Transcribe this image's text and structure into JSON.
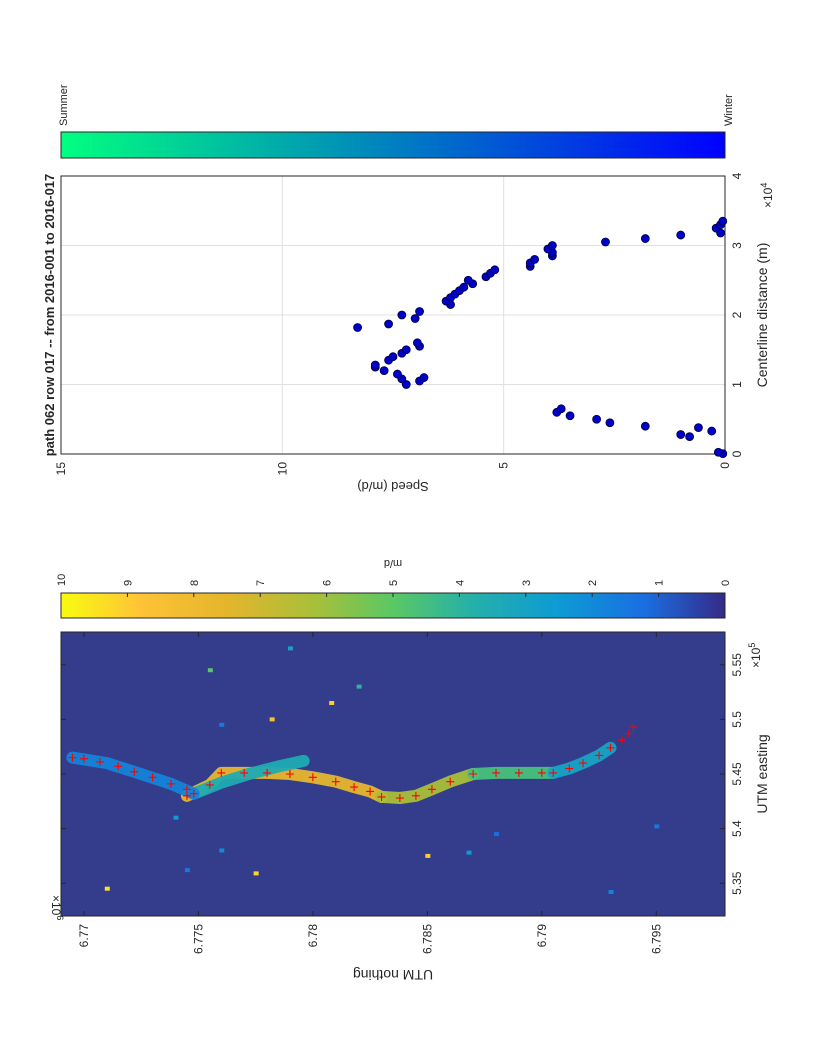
{
  "colors": {
    "marker": "#0000c8",
    "marker_edge": "#00003c",
    "track": "#ff0000",
    "grid": "#e0e0e0",
    "background": "#343c8c"
  },
  "chart_data": [
    {
      "type": "heatmap",
      "title": "",
      "xlabel": "UTM easting",
      "ylabel": "UTM nothing",
      "x_exponent": "×10^5",
      "y_exponent": "×10^6",
      "x_ticks": [
        "5.35",
        "5.4",
        "5.45",
        "5.5",
        "5.55"
      ],
      "x_tick_values": [
        5.35,
        5.4,
        5.45,
        5.5,
        5.55
      ],
      "y_ticks": [
        "6.77",
        "6.775",
        "6.78",
        "6.785",
        "6.79",
        "6.795"
      ],
      "y_tick_values": [
        6.77,
        6.775,
        6.78,
        6.785,
        6.79,
        6.795
      ],
      "xlim": [
        5.32,
        5.58
      ],
      "ylim": [
        6.769,
        6.798
      ],
      "colorbar": {
        "label": "m/d",
        "ticks": [
          "0",
          "1",
          "2",
          "3",
          "4",
          "5",
          "6",
          "7",
          "8",
          "9",
          "10"
        ],
        "range": [
          0,
          10
        ]
      },
      "track_points": [
        [
          5.465,
          6.7695
        ],
        [
          5.464,
          6.77
        ],
        [
          5.461,
          6.7707
        ],
        [
          5.457,
          6.7715
        ],
        [
          5.452,
          6.7722
        ],
        [
          5.447,
          6.773
        ],
        [
          5.441,
          6.7738
        ],
        [
          5.436,
          6.7745
        ],
        [
          5.432,
          6.7748
        ],
        [
          5.43,
          6.7745
        ],
        [
          5.44,
          6.7755
        ],
        [
          5.451,
          6.776
        ],
        [
          5.451,
          6.777
        ],
        [
          5.451,
          6.778
        ],
        [
          5.45,
          6.779
        ],
        [
          5.447,
          6.78
        ],
        [
          5.443,
          6.781
        ],
        [
          5.438,
          6.7818
        ],
        [
          5.434,
          6.7825
        ],
        [
          5.429,
          6.783
        ],
        [
          5.428,
          6.7838
        ],
        [
          5.43,
          6.7845
        ],
        [
          5.436,
          6.7852
        ],
        [
          5.443,
          6.786
        ],
        [
          5.45,
          6.787
        ],
        [
          5.451,
          6.788
        ],
        [
          5.451,
          6.789
        ],
        [
          5.451,
          6.79
        ],
        [
          5.451,
          6.7905
        ],
        [
          5.455,
          6.7912
        ],
        [
          5.46,
          6.7918
        ],
        [
          5.467,
          6.7925
        ],
        [
          5.474,
          6.793
        ],
        [
          5.481,
          6.7935
        ],
        [
          5.487,
          6.7938
        ],
        [
          5.493,
          6.794
        ]
      ],
      "speed_ribbons": [
        {
          "points": [
            [
              5.43,
              6.7745
            ],
            [
              5.44,
              6.7755
            ],
            [
              5.451,
              6.776
            ],
            [
              5.451,
              6.777
            ],
            [
              5.451,
              6.778
            ],
            [
              5.45,
              6.779
            ],
            [
              5.447,
              6.78
            ],
            [
              5.443,
              6.781
            ],
            [
              5.438,
              6.7818
            ],
            [
              5.434,
              6.7825
            ],
            [
              5.429,
              6.783
            ]
          ],
          "speed": 7.6
        },
        {
          "points": [
            [
              5.429,
              6.783
            ],
            [
              5.428,
              6.7838
            ],
            [
              5.43,
              6.7845
            ],
            [
              5.436,
              6.7852
            ],
            [
              5.443,
              6.786
            ],
            [
              5.45,
              6.787
            ]
          ],
          "speed": 6.2
        },
        {
          "points": [
            [
              5.45,
              6.787
            ],
            [
              5.451,
              6.788
            ],
            [
              5.451,
              6.789
            ],
            [
              5.451,
              6.79
            ],
            [
              5.451,
              6.7905
            ]
          ],
          "speed": 4.6
        },
        {
          "points": [
            [
              5.451,
              6.7905
            ],
            [
              5.455,
              6.7912
            ],
            [
              5.46,
              6.7918
            ],
            [
              5.467,
              6.7925
            ],
            [
              5.474,
              6.793
            ]
          ],
          "speed": 3.0
        },
        {
          "points": [
            [
              5.432,
              6.7748
            ],
            [
              5.442,
              6.776
            ],
            [
              5.45,
              6.7772
            ],
            [
              5.457,
              6.7785
            ],
            [
              5.462,
              6.7796
            ]
          ],
          "speed": 3.5
        },
        {
          "points": [
            [
              5.465,
              6.7695
            ],
            [
              5.46,
              6.771
            ],
            [
              5.452,
              6.7722
            ],
            [
              5.441,
              6.7738
            ],
            [
              5.432,
              6.7748
            ]
          ],
          "speed": 1.8
        }
      ],
      "noise_pixels": [
        [
          5.345,
          6.771,
          9.5
        ],
        [
          5.362,
          6.7745,
          1.5
        ],
        [
          5.359,
          6.7775,
          9.2
        ],
        [
          5.5,
          6.7782,
          8.5
        ],
        [
          5.495,
          6.776,
          1.5
        ],
        [
          5.515,
          6.7808,
          9.0
        ],
        [
          5.53,
          6.782,
          4.0
        ],
        [
          5.375,
          6.785,
          9.0
        ],
        [
          5.378,
          6.7868,
          2.5
        ],
        [
          5.402,
          6.795,
          1.5
        ],
        [
          5.545,
          6.7755,
          5.0
        ],
        [
          5.565,
          6.779,
          3.0
        ],
        [
          5.38,
          6.776,
          2.0
        ],
        [
          5.41,
          6.774,
          2.5
        ],
        [
          5.395,
          6.788,
          1.2
        ],
        [
          5.342,
          6.793,
          1.8
        ]
      ]
    },
    {
      "type": "scatter",
      "title": "path 062 row 017 -- from 2016-001 to 2016-017",
      "xlabel": "Centerline distance (m)",
      "ylabel": "Speed (m/d)",
      "x_exponent": "×10^4",
      "x_ticks": [
        "0",
        "1",
        "2",
        "3",
        "4"
      ],
      "x_tick_values": [
        0,
        1,
        2,
        3,
        4
      ],
      "y_ticks": [
        "0",
        "5",
        "10",
        "15"
      ],
      "y_tick_values": [
        0,
        5,
        10,
        15
      ],
      "xlim": [
        0,
        4
      ],
      "ylim": [
        0,
        15
      ],
      "grid": true,
      "colorbar": {
        "low_label": "Winter",
        "high_label": "Summer",
        "low_color": "#0000ff",
        "high_color": "#00ff80"
      },
      "x": [
        0.005,
        0.025,
        0.25,
        0.33,
        0.38,
        0.28,
        0.4,
        0.45,
        0.5,
        0.55,
        0.6,
        0.65,
        1.0,
        1.05,
        1.08,
        1.1,
        1.15,
        1.2,
        1.25,
        1.28,
        1.35,
        1.4,
        1.45,
        1.5,
        1.55,
        1.6,
        1.82,
        1.87,
        1.95,
        2.0,
        2.05,
        2.15,
        2.2,
        2.25,
        2.3,
        2.35,
        2.4,
        2.45,
        2.5,
        2.55,
        2.6,
        2.65,
        2.7,
        2.75,
        2.8,
        2.85,
        2.9,
        2.95,
        3.0,
        3.05,
        3.1,
        3.15,
        3.18,
        3.25,
        3.3,
        3.35
      ],
      "y": [
        0.05,
        0.15,
        0.8,
        0.3,
        0.6,
        1.0,
        1.8,
        2.6,
        2.9,
        3.5,
        3.8,
        3.7,
        7.2,
        6.9,
        7.3,
        6.8,
        7.4,
        7.7,
        7.9,
        7.9,
        7.6,
        7.5,
        7.3,
        7.2,
        6.9,
        6.95,
        8.3,
        7.6,
        7.0,
        7.3,
        6.9,
        6.2,
        6.3,
        6.2,
        6.1,
        6.0,
        5.9,
        5.7,
        5.8,
        5.4,
        5.3,
        5.2,
        4.4,
        4.4,
        4.3,
        3.9,
        3.9,
        4.0,
        3.9,
        2.7,
        1.8,
        1.0,
        0.1,
        0.2,
        0.1,
        0.05
      ]
    }
  ]
}
